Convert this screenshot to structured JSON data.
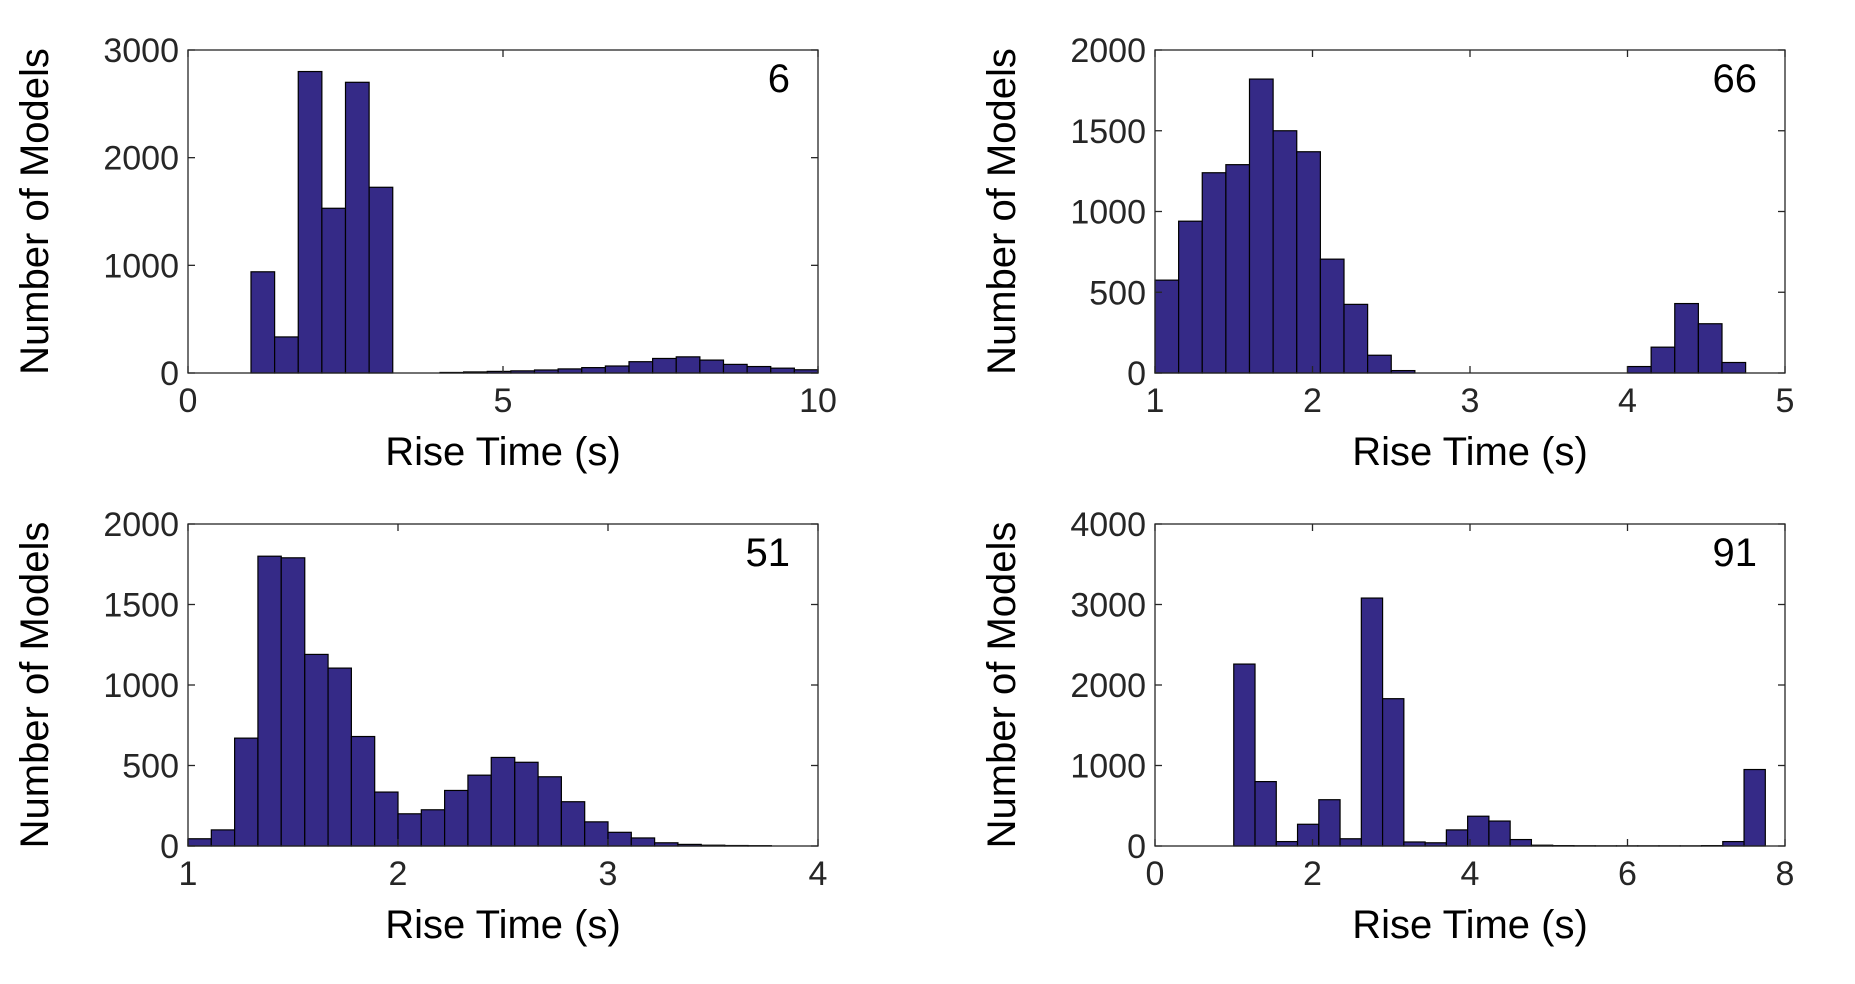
{
  "colors": {
    "bar": "#352A87",
    "axis": "#262626",
    "background": "#ffffff"
  },
  "chart_data": [
    {
      "type": "bar",
      "panel_label": "6",
      "xlabel": "Rise Time (s)",
      "ylabel": "Number of Models",
      "xlim": [
        0,
        10
      ],
      "ylim": [
        0,
        3000
      ],
      "xticks": [
        0,
        5,
        10
      ],
      "yticks": [
        0,
        1000,
        2000,
        3000
      ],
      "bin_edges": [
        1.0,
        1.375,
        1.75,
        2.125,
        2.5,
        2.875,
        3.25,
        3.625,
        4.0,
        4.375,
        4.75,
        5.125,
        5.5,
        5.875,
        6.25,
        6.625,
        7.0,
        7.375,
        7.75,
        8.125,
        8.5,
        8.875,
        9.25,
        9.625,
        10.0
      ],
      "values": [
        940,
        335,
        2800,
        1530,
        2700,
        1725,
        0,
        0,
        5,
        10,
        15,
        20,
        28,
        38,
        50,
        65,
        105,
        135,
        150,
        120,
        80,
        60,
        45,
        30
      ]
    },
    {
      "type": "bar",
      "panel_label": "66",
      "xlabel": "Rise Time (s)",
      "ylabel": "Number of Models",
      "xlim": [
        1,
        5
      ],
      "ylim": [
        0,
        2000
      ],
      "xticks": [
        1,
        2,
        3,
        4,
        5
      ],
      "yticks": [
        0,
        500,
        1000,
        1500,
        2000
      ],
      "bin_edges": [
        1.0,
        1.15,
        1.3,
        1.45,
        1.6,
        1.75,
        1.9,
        2.05,
        2.2,
        2.35,
        2.5,
        2.65,
        2.8,
        2.95,
        3.1,
        3.25,
        3.4,
        3.55,
        3.7,
        3.85,
        4.0,
        4.15,
        4.3,
        4.45,
        4.6,
        4.75
      ],
      "values": [
        575,
        940,
        1240,
        1290,
        1820,
        1500,
        1370,
        705,
        425,
        110,
        15,
        0,
        0,
        0,
        0,
        0,
        0,
        0,
        0,
        0,
        40,
        160,
        430,
        305,
        65
      ]
    },
    {
      "type": "bar",
      "panel_label": "51",
      "xlabel": "Rise Time (s)",
      "ylabel": "Number of Models",
      "xlim": [
        1,
        4
      ],
      "ylim": [
        0,
        2000
      ],
      "xticks": [
        1,
        2,
        3,
        4
      ],
      "yticks": [
        0,
        500,
        1000,
        1500,
        2000
      ],
      "bin_edges": [
        1.0,
        1.111,
        1.222,
        1.333,
        1.444,
        1.556,
        1.667,
        1.778,
        1.889,
        2.0,
        2.111,
        2.222,
        2.333,
        2.444,
        2.556,
        2.667,
        2.778,
        2.889,
        3.0,
        3.111,
        3.222,
        3.333,
        3.444,
        3.556,
        3.667,
        3.778,
        3.889
      ],
      "values": [
        45,
        100,
        670,
        1800,
        1790,
        1190,
        1105,
        680,
        335,
        200,
        225,
        345,
        440,
        550,
        520,
        430,
        275,
        150,
        85,
        50,
        20,
        10,
        5,
        3,
        2,
        0
      ]
    },
    {
      "type": "bar",
      "panel_label": "91",
      "xlabel": "Rise Time (s)",
      "ylabel": "Number of Models",
      "xlim": [
        0,
        8
      ],
      "ylim": [
        0,
        4000
      ],
      "xticks": [
        0,
        2,
        4,
        6,
        8
      ],
      "yticks": [
        0,
        1000,
        2000,
        3000,
        4000
      ],
      "bin_edges": [
        1.0,
        1.27,
        1.54,
        1.81,
        2.08,
        2.35,
        2.62,
        2.89,
        3.16,
        3.43,
        3.7,
        3.97,
        4.24,
        4.51,
        4.78,
        5.05,
        5.32,
        5.59,
        5.86,
        6.13,
        6.4,
        6.67,
        6.94,
        7.21,
        7.48,
        7.75
      ],
      "values": [
        2260,
        800,
        55,
        270,
        575,
        90,
        3080,
        1830,
        50,
        40,
        200,
        370,
        310,
        80,
        10,
        5,
        3,
        2,
        2,
        2,
        2,
        2,
        5,
        55,
        950
      ]
    }
  ]
}
